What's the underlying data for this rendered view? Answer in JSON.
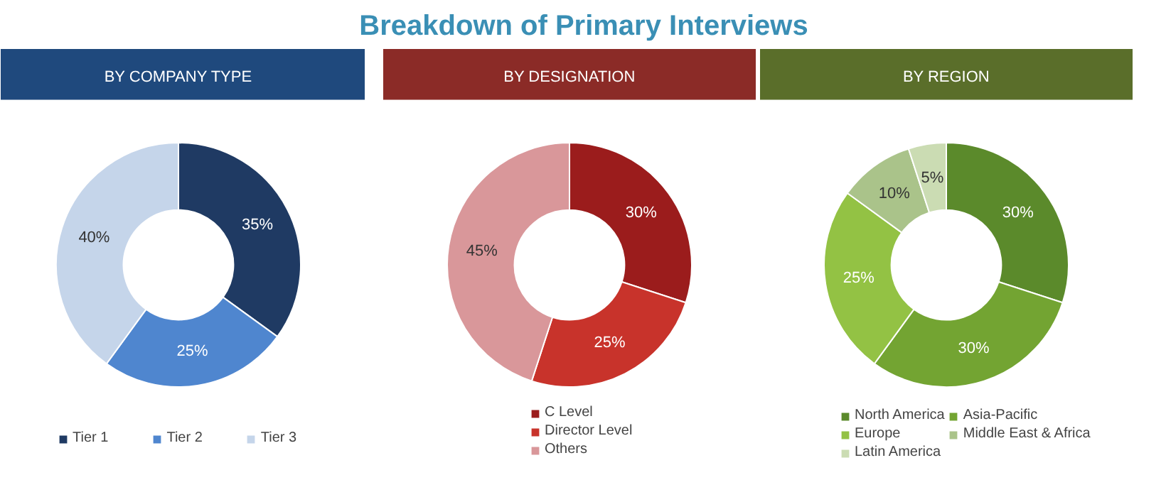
{
  "chart_data": [
    {
      "type": "other",
      "title": "Breakdown of Primary Interviews"
    },
    {
      "type": "donut",
      "title": "BY COMPANY TYPE",
      "categories": [
        "Tier 1",
        "Tier 2",
        "Tier 3"
      ],
      "values": [
        35,
        25,
        40
      ],
      "value_labels": [
        "35%",
        "25%",
        "40%"
      ],
      "colors": [
        "#1f3a63",
        "#4f86cf",
        "#c5d5ea"
      ],
      "legend": "bottom"
    },
    {
      "type": "donut",
      "title": "BY DESIGNATION",
      "categories": [
        "C Level",
        "Director Level",
        "Others"
      ],
      "values": [
        30,
        25,
        45
      ],
      "value_labels": [
        "30%",
        "25%",
        "45%"
      ],
      "colors": [
        "#9b1c1c",
        "#c8332b",
        "#d9979a"
      ],
      "legend": "bottom"
    },
    {
      "type": "donut",
      "title": "BY REGION",
      "categories": [
        "North America",
        "Asia-Pacific",
        "Europe",
        "Middle East & Africa",
        "Latin America"
      ],
      "values": [
        30,
        30,
        25,
        10,
        5
      ],
      "value_labels": [
        "30%",
        "30%",
        "25%",
        "10%",
        "5%"
      ],
      "colors": [
        "#5b8a2b",
        "#73a432",
        "#93c244",
        "#aac38a",
        "#cbdcb3"
      ],
      "legend": "bottom"
    }
  ]
}
